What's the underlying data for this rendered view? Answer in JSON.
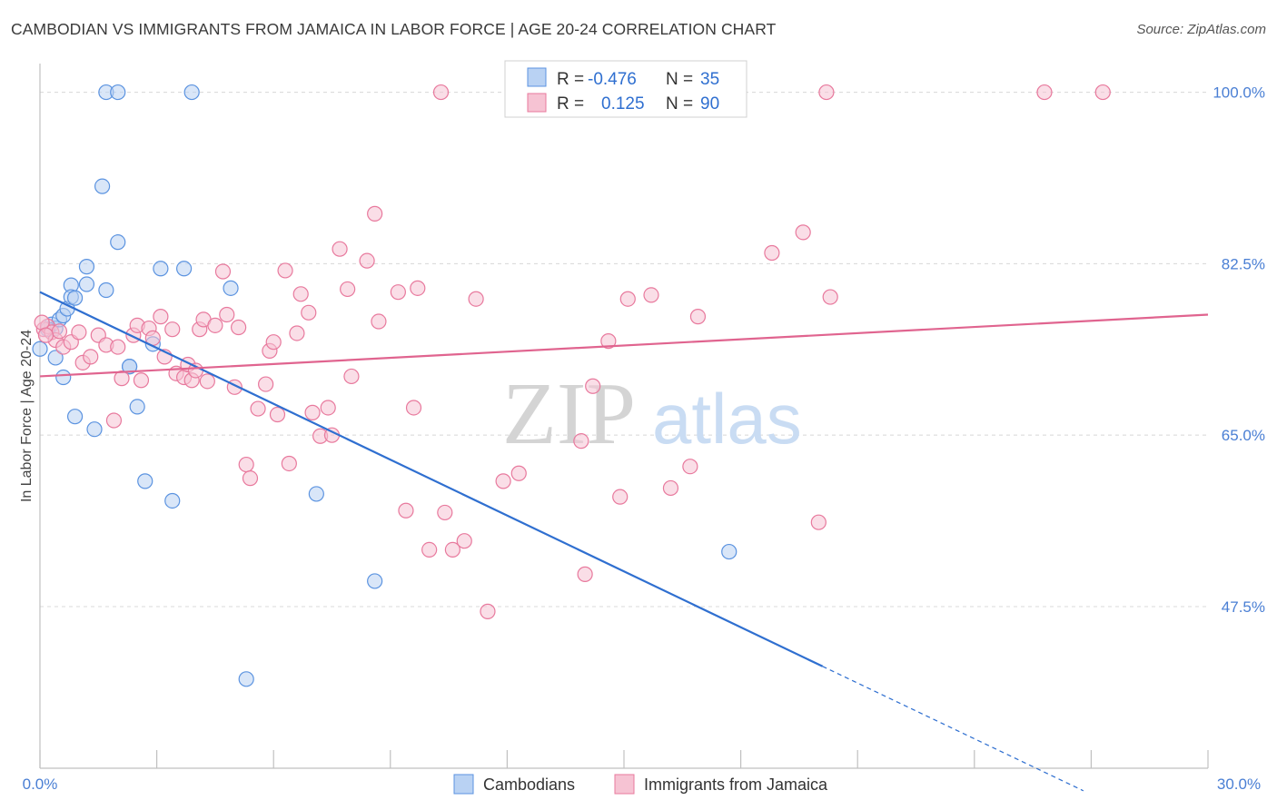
{
  "header": {
    "title": "CAMBODIAN VS IMMIGRANTS FROM JAMAICA IN LABOR FORCE | AGE 20-24 CORRELATION CHART",
    "source": "Source: ZipAtlas.com"
  },
  "watermark": {
    "zip": "ZIP",
    "atlas": "atlas"
  },
  "colors": {
    "blue": "#5b93e0",
    "blue_fill": "#b9d2f3",
    "blue_line": "#2f6fd0",
    "pink": "#e8799d",
    "pink_fill": "#f6c3d3",
    "pink_line": "#e0648f",
    "tick_text": "#4a7fd4",
    "grid": "#d8d8d8"
  },
  "legend": {
    "rows": [
      {
        "r_label": "R =",
        "r_value": "-0.476",
        "n_label": "N =",
        "n_value": "35"
      },
      {
        "r_label": "R =",
        "r_value": "0.125",
        "n_label": "N =",
        "n_value": "90"
      }
    ]
  },
  "bottom_legend": {
    "items": [
      "Cambodians",
      "Immigrants from Jamaica"
    ]
  },
  "chart_data": {
    "type": "scatter",
    "title": "CAMBODIAN VS IMMIGRANTS FROM JAMAICA IN LABOR FORCE | AGE 20-24 CORRELATION CHART",
    "xlabel": "",
    "ylabel": "In Labor Force | Age 20-24",
    "xlim": [
      0,
      30
    ],
    "ylim": [
      31,
      102
    ],
    "x_tick_labels": [
      "0.0%",
      "30.0%"
    ],
    "y_ticks": [
      47.5,
      65.0,
      82.5,
      100.0
    ],
    "y_tick_labels": [
      "47.5%",
      "65.0%",
      "82.5%",
      "100.0%"
    ],
    "grid": true,
    "legend_position": "top-center",
    "series": [
      {
        "name": "Cambodians",
        "R": -0.476,
        "N": 35,
        "points": [
          [
            0.0,
            73.8
          ],
          [
            0.3,
            76.3
          ],
          [
            0.4,
            75.9
          ],
          [
            0.4,
            72.9
          ],
          [
            0.5,
            76.8
          ],
          [
            0.6,
            77.2
          ],
          [
            0.7,
            77.9
          ],
          [
            0.6,
            70.9
          ],
          [
            0.8,
            80.3
          ],
          [
            0.8,
            79.1
          ],
          [
            0.9,
            79.0
          ],
          [
            0.9,
            66.9
          ],
          [
            1.2,
            80.4
          ],
          [
            1.2,
            82.2
          ],
          [
            1.4,
            65.6
          ],
          [
            1.6,
            90.4
          ],
          [
            1.7,
            79.8
          ],
          [
            1.7,
            100.0
          ],
          [
            2.0,
            100.0
          ],
          [
            2.0,
            84.7
          ],
          [
            2.3,
            72.0
          ],
          [
            2.3,
            72.0
          ],
          [
            2.5,
            67.9
          ],
          [
            2.7,
            60.3
          ],
          [
            2.9,
            74.3
          ],
          [
            3.1,
            82.0
          ],
          [
            3.4,
            58.3
          ],
          [
            3.7,
            82.0
          ],
          [
            3.9,
            100.0
          ],
          [
            4.9,
            80.0
          ],
          [
            5.3,
            40.1
          ],
          [
            7.1,
            59.0
          ],
          [
            8.6,
            50.1
          ],
          [
            17.7,
            53.1
          ],
          [
            0.2,
            75.8
          ]
        ],
        "trend": {
          "x": [
            0.0,
            20.1
          ],
          "y": [
            79.6,
            41.4
          ]
        },
        "trend_dashed": {
          "x": [
            20.1,
            26.8
          ],
          "y": [
            41.4,
            28.7
          ]
        }
      },
      {
        "name": "Immigrants from Jamaica",
        "R": 0.125,
        "N": 90,
        "points": [
          [
            0.1,
            75.8
          ],
          [
            0.2,
            76.1
          ],
          [
            0.3,
            75.5
          ],
          [
            0.4,
            74.7
          ],
          [
            0.5,
            75.6
          ],
          [
            0.6,
            74.0
          ],
          [
            0.8,
            74.5
          ],
          [
            1.0,
            75.5
          ],
          [
            1.1,
            72.4
          ],
          [
            1.3,
            73.0
          ],
          [
            1.5,
            75.2
          ],
          [
            1.7,
            74.2
          ],
          [
            1.9,
            66.5
          ],
          [
            2.0,
            74.0
          ],
          [
            2.1,
            70.8
          ],
          [
            2.4,
            75.2
          ],
          [
            2.5,
            76.2
          ],
          [
            2.6,
            70.6
          ],
          [
            2.8,
            75.9
          ],
          [
            2.9,
            74.9
          ],
          [
            3.1,
            77.1
          ],
          [
            3.2,
            73.0
          ],
          [
            3.4,
            75.8
          ],
          [
            3.5,
            71.3
          ],
          [
            3.7,
            70.9
          ],
          [
            3.8,
            72.2
          ],
          [
            3.9,
            70.6
          ],
          [
            4.0,
            71.6
          ],
          [
            4.1,
            75.8
          ],
          [
            4.2,
            76.8
          ],
          [
            4.3,
            70.5
          ],
          [
            4.5,
            76.2
          ],
          [
            4.7,
            81.7
          ],
          [
            4.8,
            77.3
          ],
          [
            5.0,
            69.9
          ],
          [
            5.1,
            76.0
          ],
          [
            5.3,
            62.0
          ],
          [
            5.4,
            60.6
          ],
          [
            5.6,
            67.7
          ],
          [
            5.8,
            70.2
          ],
          [
            5.9,
            73.6
          ],
          [
            6.0,
            74.5
          ],
          [
            6.1,
            67.1
          ],
          [
            6.3,
            81.8
          ],
          [
            6.4,
            62.1
          ],
          [
            6.6,
            75.4
          ],
          [
            6.7,
            79.4
          ],
          [
            6.9,
            77.5
          ],
          [
            7.0,
            67.3
          ],
          [
            7.2,
            64.9
          ],
          [
            7.4,
            67.8
          ],
          [
            7.5,
            65.0
          ],
          [
            7.7,
            84.0
          ],
          [
            7.9,
            79.9
          ],
          [
            8.0,
            71.0
          ],
          [
            8.4,
            82.8
          ],
          [
            8.6,
            87.6
          ],
          [
            8.7,
            76.6
          ],
          [
            9.2,
            79.6
          ],
          [
            9.4,
            57.3
          ],
          [
            9.6,
            67.8
          ],
          [
            9.7,
            80.0
          ],
          [
            10.0,
            53.3
          ],
          [
            10.4,
            57.1
          ],
          [
            10.6,
            53.3
          ],
          [
            10.9,
            54.2
          ],
          [
            11.2,
            78.9
          ],
          [
            11.5,
            47.0
          ],
          [
            11.9,
            60.3
          ],
          [
            12.3,
            61.1
          ],
          [
            13.9,
            64.4
          ],
          [
            14.0,
            50.8
          ],
          [
            14.2,
            70.0
          ],
          [
            14.6,
            74.6
          ],
          [
            14.9,
            58.7
          ],
          [
            15.1,
            78.9
          ],
          [
            15.7,
            79.3
          ],
          [
            16.2,
            59.6
          ],
          [
            16.7,
            61.8
          ],
          [
            16.9,
            77.1
          ],
          [
            18.8,
            83.6
          ],
          [
            19.6,
            85.7
          ],
          [
            20.0,
            56.1
          ],
          [
            20.3,
            79.1
          ],
          [
            10.3,
            100.0
          ],
          [
            20.2,
            100.0
          ],
          [
            25.8,
            100.0
          ],
          [
            27.3,
            100.0
          ],
          [
            0.05,
            76.5
          ],
          [
            0.15,
            75.2
          ]
        ],
        "trend": {
          "x": [
            0.0,
            30.0
          ],
          "y": [
            71.0,
            77.3
          ]
        }
      }
    ]
  },
  "axis_labels": {
    "ylabel": "In Labor Force | Age 20-24"
  }
}
